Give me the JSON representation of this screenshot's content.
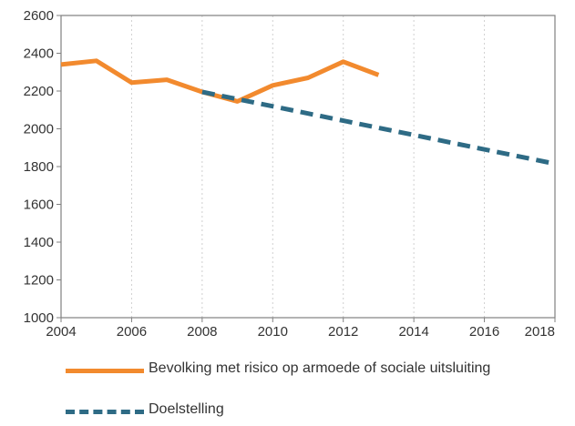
{
  "chart_data": {
    "type": "line",
    "title": "",
    "xlabel": "",
    "ylabel": "",
    "xlim": [
      2004,
      2018
    ],
    "ylim": [
      1000,
      2600
    ],
    "xticks": [
      2004,
      2006,
      2008,
      2010,
      2012,
      2014,
      2016,
      2018
    ],
    "yticks": [
      1000,
      1200,
      1400,
      1600,
      1800,
      2000,
      2200,
      2400,
      2600
    ],
    "grid": "vertical-dashed",
    "legend_position": "bottom",
    "series": [
      {
        "name": "Bevolking met risico op armoede of sociale uitsluiting",
        "style": "solid",
        "color": "#f28a2e",
        "x": [
          2004,
          2005,
          2006,
          2007,
          2008,
          2009,
          2010,
          2011,
          2012,
          2013
        ],
        "y": [
          2340,
          2360,
          2245,
          2260,
          2195,
          2145,
          2230,
          2270,
          2355,
          2285
        ]
      },
      {
        "name": "Doelstelling",
        "style": "dashed",
        "color": "#2e6b85",
        "x": [
          2008,
          2018
        ],
        "y": [
          2195,
          1815
        ]
      }
    ]
  }
}
